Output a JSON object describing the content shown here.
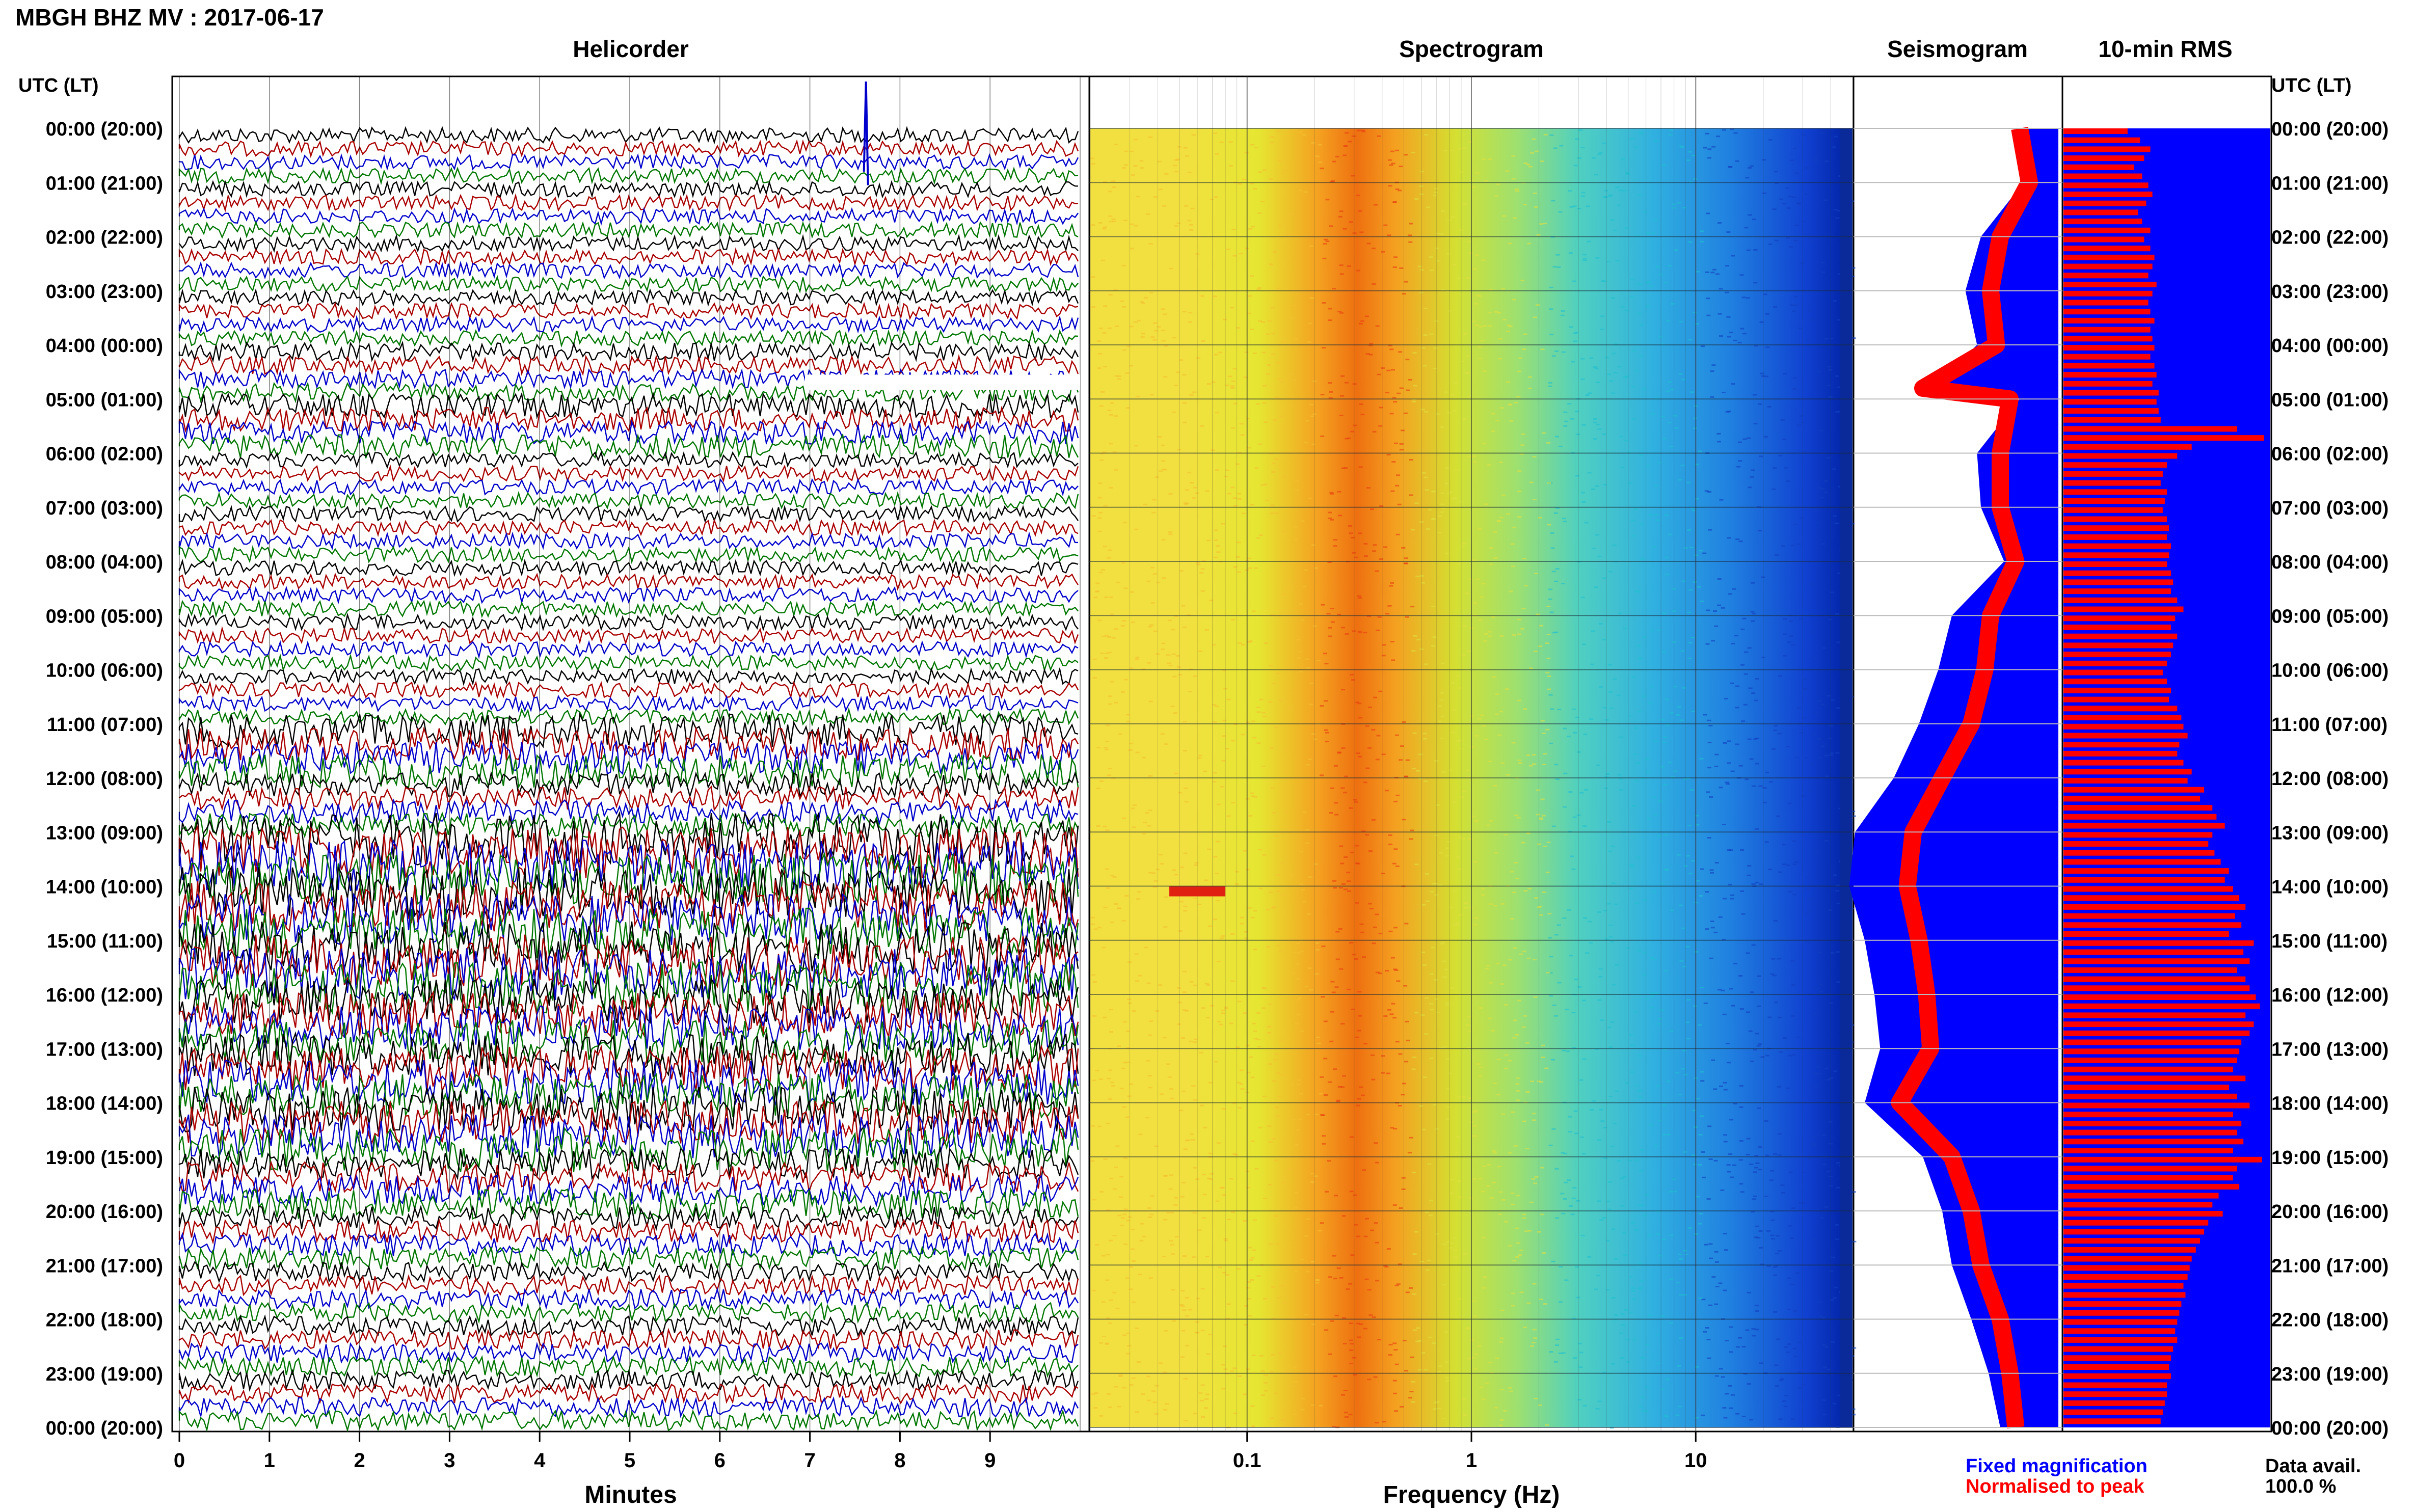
{
  "header": {
    "title": "MBGH BHZ MV : 2017-06-17"
  },
  "panels": {
    "helicorder_title": "Helicorder",
    "spectrogram_title": "Spectrogram",
    "seismogram_title": "Seismogram",
    "rms_title": "10-min RMS"
  },
  "axes": {
    "left_header": "UTC (LT)",
    "right_header": "UTC (LT)",
    "time_labels": [
      "00:00 (20:00)",
      "01:00 (21:00)",
      "02:00 (22:00)",
      "03:00 (23:00)",
      "04:00 (00:00)",
      "05:00 (01:00)",
      "06:00 (02:00)",
      "07:00 (03:00)",
      "08:00 (04:00)",
      "09:00 (05:00)",
      "10:00 (06:00)",
      "11:00 (07:00)",
      "12:00 (08:00)",
      "13:00 (09:00)",
      "14:00 (10:00)",
      "15:00 (11:00)",
      "16:00 (12:00)",
      "17:00 (13:00)",
      "18:00 (14:00)",
      "19:00 (15:00)",
      "20:00 (16:00)",
      "21:00 (17:00)",
      "22:00 (18:00)",
      "23:00 (19:00)",
      "00:00 (20:00)"
    ],
    "minutes_label": "Minutes",
    "minutes_ticks": [
      "0",
      "1",
      "2",
      "3",
      "4",
      "5",
      "6",
      "7",
      "8",
      "9"
    ],
    "frequency_label": "Frequency (Hz)",
    "frequency_ticks": [
      "0.1",
      "1",
      "10"
    ]
  },
  "legend": {
    "fixed": "Fixed magnification",
    "normalised": "Normalised to peak",
    "fixed_color": "#0000ff",
    "normalised_color": "#ff0000"
  },
  "availability": {
    "label": "Data avail.",
    "value": "100.0 %"
  },
  "colors": {
    "trace_cycle": [
      "#000000",
      "#aa0000",
      "#0000cc",
      "#007700"
    ]
  },
  "chart_data": [
    {
      "type": "line",
      "name": "helicorder",
      "xlim": [
        0,
        10
      ],
      "hours": 24,
      "activity_by_hour": [
        1,
        1,
        1,
        1,
        1.2,
        1.6,
        1,
        1,
        1,
        1,
        1,
        2.2,
        1.6,
        3.5,
        3.5,
        3.5,
        3,
        3,
        3,
        2,
        1.5,
        1.3,
        1.3,
        1.3
      ]
    },
    {
      "type": "heatmap",
      "name": "spectrogram",
      "x_scale": "log",
      "xlim": [
        0.02,
        50
      ],
      "peak_band_hz": [
        0.3,
        0.5
      ]
    },
    {
      "type": "line",
      "name": "seismogram-envelope",
      "hours": [
        0,
        1,
        2,
        3,
        4,
        4.8,
        5,
        6,
        7,
        8,
        9,
        10,
        11,
        12,
        13,
        14,
        15,
        16,
        17,
        18,
        19,
        20,
        21,
        22,
        23,
        24
      ],
      "fixed_magnification": [
        0.22,
        0.18,
        0.4,
        0.48,
        0.42,
        0.65,
        0.2,
        0.42,
        0.4,
        0.28,
        0.55,
        0.62,
        0.72,
        0.85,
        1.05,
        1.08,
        1.0,
        0.95,
        0.92,
        1.0,
        0.7,
        0.6,
        0.55,
        0.45,
        0.36,
        0.3
      ],
      "normalised_to_peak": [
        0.2,
        0.15,
        0.3,
        0.35,
        0.32,
        0.7,
        0.25,
        0.3,
        0.3,
        0.22,
        0.35,
        0.38,
        0.45,
        0.6,
        0.75,
        0.78,
        0.72,
        0.68,
        0.66,
        0.82,
        0.55,
        0.45,
        0.4,
        0.3,
        0.25,
        0.22
      ]
    },
    {
      "type": "bar",
      "name": "rms-10min",
      "xlim": [
        0,
        1
      ],
      "values": [
        0.31,
        0.37,
        0.42,
        0.39,
        0.34,
        0.38,
        0.41,
        0.43,
        0.4,
        0.36,
        0.38,
        0.42,
        0.39,
        0.42,
        0.44,
        0.43,
        0.41,
        0.45,
        0.43,
        0.41,
        0.42,
        0.44,
        0.42,
        0.43,
        0.44,
        0.42,
        0.44,
        0.45,
        0.43,
        0.46,
        0.45,
        0.46,
        0.47,
        0.84,
        0.97,
        0.62,
        0.55,
        0.5,
        0.48,
        0.47,
        0.5,
        0.49,
        0.48,
        0.5,
        0.51,
        0.5,
        0.52,
        0.51,
        0.5,
        0.52,
        0.53,
        0.52,
        0.55,
        0.58,
        0.54,
        0.52,
        0.55,
        0.53,
        0.52,
        0.5,
        0.48,
        0.5,
        0.52,
        0.51,
        0.55,
        0.57,
        0.58,
        0.6,
        0.56,
        0.55,
        0.58,
        0.62,
        0.6,
        0.68,
        0.66,
        0.72,
        0.74,
        0.78,
        0.72,
        0.7,
        0.73,
        0.76,
        0.8,
        0.78,
        0.82,
        0.85,
        0.88,
        0.83,
        0.86,
        0.8,
        0.92,
        0.87,
        0.9,
        0.84,
        0.88,
        0.9,
        0.93,
        0.95,
        0.88,
        0.92,
        0.9,
        0.86,
        0.85,
        0.84,
        0.82,
        0.88,
        0.8,
        0.84,
        0.9,
        0.82,
        0.86,
        0.84,
        0.87,
        0.82,
        0.96,
        0.84,
        0.82,
        0.85,
        0.75,
        0.72,
        0.77,
        0.7,
        0.68,
        0.66,
        0.64,
        0.62,
        0.61,
        0.6,
        0.58,
        0.59,
        0.57,
        0.56,
        0.55,
        0.54,
        0.55,
        0.53,
        0.52,
        0.51,
        0.52,
        0.5,
        0.5,
        0.49,
        0.48,
        0.47
      ]
    }
  ]
}
